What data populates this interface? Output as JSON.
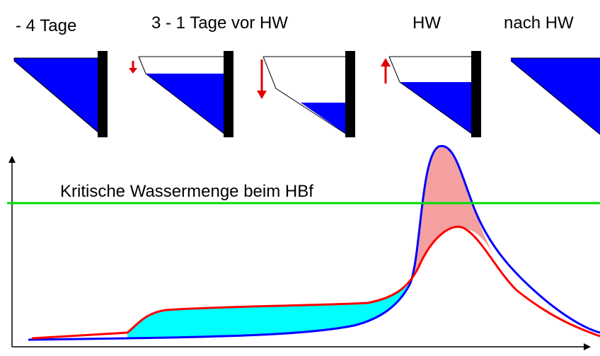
{
  "phases": [
    "- 4 Tage",
    "3 - 1 Tage vor HW",
    "HW",
    "nach HW"
  ],
  "threshold_label": "Kritische Wassermenge beim HBf"
}
